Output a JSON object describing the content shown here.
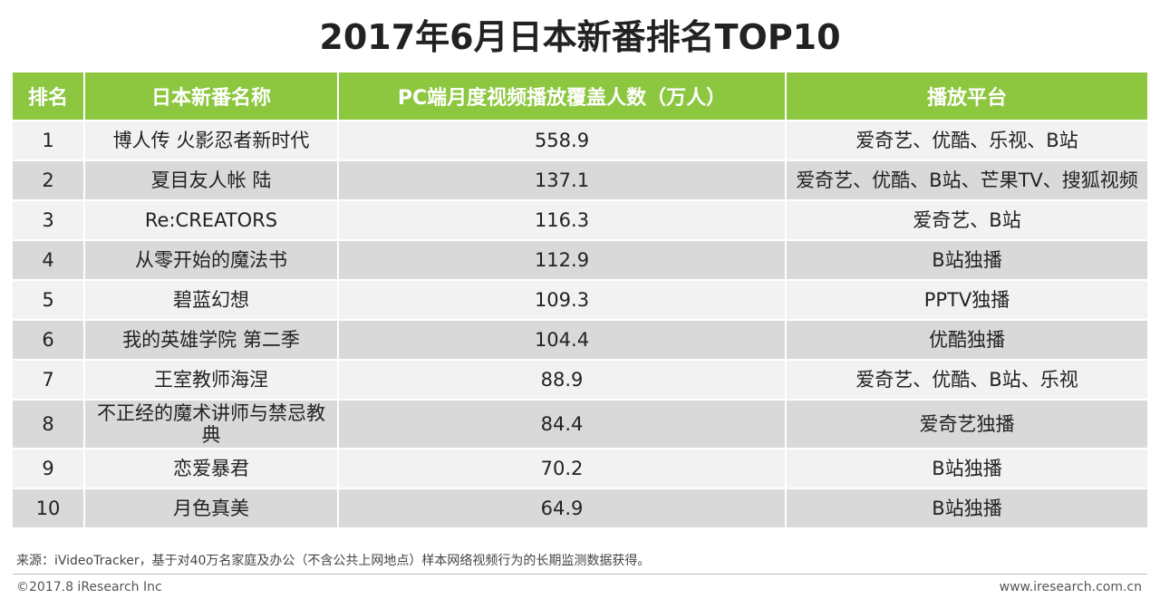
{
  "title": "2017年6月日本新番排名TOP10",
  "chart_data": {
    "type": "table",
    "title": "2017年6月日本新番排名TOP10",
    "columns": [
      "排名",
      "日本新番名称",
      "PC端月度视频播放覆盖人数（万人）",
      "播放平台"
    ],
    "rows": [
      [
        "1",
        "博人传 火影忍者新时代",
        "558.9",
        "爱奇艺、优酷、乐视、B站"
      ],
      [
        "2",
        "夏目友人帐 陆",
        "137.1",
        "爱奇艺、优酷、B站、芒果TV、搜狐视频"
      ],
      [
        "3",
        "Re:CREATORS",
        "116.3",
        "爱奇艺、B站"
      ],
      [
        "4",
        "从零开始的魔法书",
        "112.9",
        "B站独播"
      ],
      [
        "5",
        "碧蓝幻想",
        "109.3",
        "PPTV独播"
      ],
      [
        "6",
        "我的英雄学院 第二季",
        "104.4",
        "优酷独播"
      ],
      [
        "7",
        "王室教师海涅",
        "88.9",
        "爱奇艺、优酷、B站、乐视"
      ],
      [
        "8",
        "不正经的魔术讲师与禁忌教典",
        "84.4",
        "爱奇艺独播"
      ],
      [
        "9",
        "恋爱暴君",
        "70.2",
        "B站独播"
      ],
      [
        "10",
        "月色真美",
        "64.9",
        "B站独播"
      ]
    ]
  },
  "colors": {
    "header_bg": "#8dc63f",
    "row_light": "#f2f2f2",
    "row_dark": "#d9d9d9"
  },
  "footer": {
    "source": "来源：iVideoTracker，基于对40万名家庭及办公（不含公共上网地点）样本网络视频行为的长期监测数据获得。",
    "copyright": "©2017.8 iResearch Inc",
    "site": "www.iresearch.com.cn"
  }
}
